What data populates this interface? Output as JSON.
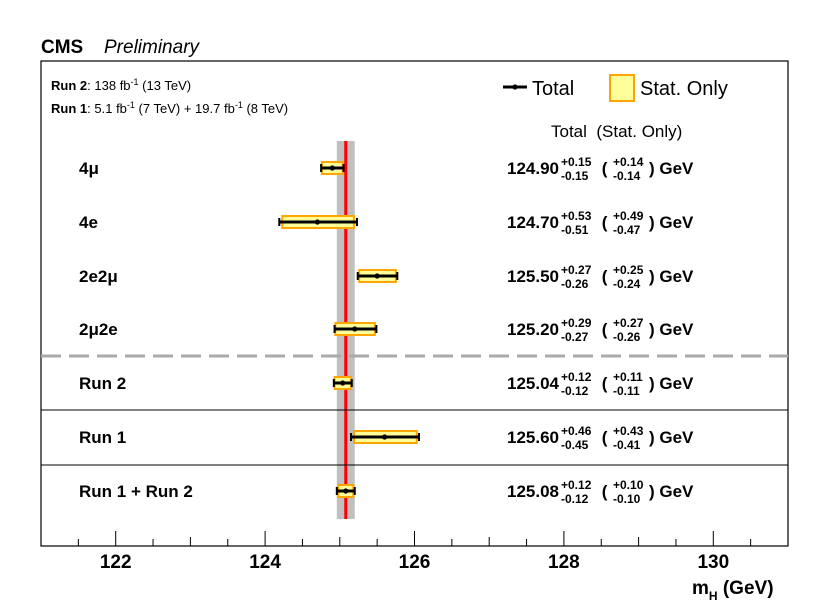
{
  "chart_data": {
    "type": "forest",
    "experiment": "CMS",
    "status": "Preliminary",
    "luminosity_run2": {
      "label": "Run 2",
      "lumi": "138",
      "unit_base": "fb",
      "unit_exp": "-1",
      "energy": "(13 TeV)"
    },
    "luminosity_run1": {
      "label": "Run 1",
      "lumi1": "5.1",
      "unit_base": "fb",
      "unit_exp": "-1",
      "energy1": "(7 TeV) +",
      "lumi2": "19.7",
      "energy2": "(8 TeV)"
    },
    "legend": {
      "total": "Total",
      "stat_only": "Stat. Only"
    },
    "column_header": "Total  (Stat. Only)",
    "unit": "GeV",
    "xlabel": "m",
    "xlabel_sub": "H",
    "xlabel_unit": "(GeV)",
    "xlim": [
      121,
      131
    ],
    "xticks": [
      122,
      124,
      126,
      128,
      130
    ],
    "combined_line": 125.08,
    "combined_band": [
      124.96,
      125.2
    ],
    "measurements": [
      {
        "label": "4μ",
        "central": 124.9,
        "central_text": "124.90",
        "tot_up": 0.15,
        "tot_dn": 0.15,
        "stat_up": 0.14,
        "stat_dn": 0.14,
        "tot_up_text": "+0.15",
        "tot_dn_text": "-0.15",
        "stat_up_text": "+0.14",
        "stat_dn_text": "-0.14"
      },
      {
        "label": "4e",
        "central": 124.7,
        "central_text": "124.70",
        "tot_up": 0.53,
        "tot_dn": 0.51,
        "stat_up": 0.49,
        "stat_dn": 0.47,
        "tot_up_text": "+0.53",
        "tot_dn_text": "-0.51",
        "stat_up_text": "+0.49",
        "stat_dn_text": "-0.47"
      },
      {
        "label": "2e2μ",
        "central": 125.5,
        "central_text": "125.50",
        "tot_up": 0.27,
        "tot_dn": 0.26,
        "stat_up": 0.25,
        "stat_dn": 0.24,
        "tot_up_text": "+0.27",
        "tot_dn_text": "-0.26",
        "stat_up_text": "+0.25",
        "stat_dn_text": "-0.24"
      },
      {
        "label": "2μ2e",
        "central": 125.2,
        "central_text": "125.20",
        "tot_up": 0.29,
        "tot_dn": 0.27,
        "stat_up": 0.27,
        "stat_dn": 0.26,
        "tot_up_text": "+0.29",
        "tot_dn_text": "-0.27",
        "stat_up_text": "+0.27",
        "stat_dn_text": "-0.26"
      },
      {
        "label": "Run 2",
        "central": 125.04,
        "central_text": "125.04",
        "tot_up": 0.12,
        "tot_dn": 0.12,
        "stat_up": 0.11,
        "stat_dn": 0.11,
        "tot_up_text": "+0.12",
        "tot_dn_text": "-0.12",
        "stat_up_text": "+0.11",
        "stat_dn_text": "-0.11"
      },
      {
        "label": "Run 1",
        "central": 125.6,
        "central_text": "125.60",
        "tot_up": 0.46,
        "tot_dn": 0.45,
        "stat_up": 0.43,
        "stat_dn": 0.41,
        "tot_up_text": "+0.46",
        "tot_dn_text": "-0.45",
        "stat_up_text": "+0.43",
        "stat_dn_text": "-0.41"
      },
      {
        "label": "Run 1 + Run 2",
        "central": 125.08,
        "central_text": "125.08",
        "tot_up": 0.12,
        "tot_dn": 0.12,
        "stat_up": 0.1,
        "stat_dn": 0.1,
        "tot_up_text": "+0.12",
        "tot_dn_text": "-0.12",
        "stat_up_text": "+0.10",
        "stat_dn_text": "-0.10"
      }
    ],
    "colors": {
      "stat_fill": "#ffff99",
      "stat_edge": "#ffa500",
      "total": "#000000",
      "combined_line": "#ff0000",
      "combined_band": "#c0c0c0",
      "separator": "#aaaaaa"
    }
  }
}
